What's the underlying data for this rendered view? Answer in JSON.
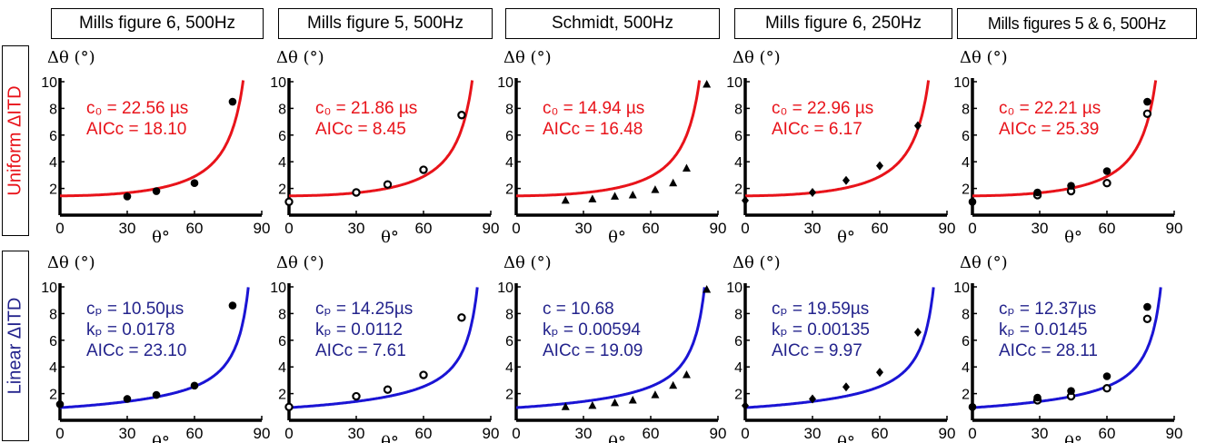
{
  "headers": [
    "Mills figure 6, 500Hz",
    "Mills figure 5, 500Hz",
    "Schmidt, 500Hz",
    "Mills figure 6, 250Hz",
    "Mills figures 5 & 6, 500Hz"
  ],
  "row_labels": [
    "Uniform ΔITD",
    "Linear ΔITD"
  ],
  "colors": {
    "uniform": "#e8131a",
    "linear": "#1a14d4",
    "uniform_text": "#e8131a",
    "linear_text": "#23238c"
  },
  "axis": {
    "ylabel": "Δθ (°)",
    "xlabel": "θ°"
  },
  "chart_data": [
    {
      "type": "scatter",
      "row": "uniform",
      "column": 0,
      "marker": "circle",
      "curve": "uniform",
      "x": [
        30,
        43,
        60,
        77
      ],
      "y": [
        1.4,
        1.8,
        2.4,
        8.5
      ],
      "annotations": [
        "c₀ = 22.56 µs",
        "AICc = 18.10"
      ],
      "xlim": [
        0,
        90
      ],
      "ylim": [
        0,
        10
      ],
      "xticks": [
        "0",
        "30",
        "60",
        "90"
      ],
      "yticks": [
        "2",
        "4",
        "6",
        "8",
        "10"
      ]
    },
    {
      "type": "scatter",
      "row": "uniform",
      "column": 1,
      "marker": "open-circle",
      "curve": "uniform",
      "x": [
        0,
        30,
        44,
        60,
        77
      ],
      "y": [
        1.0,
        1.7,
        2.3,
        3.4,
        7.5
      ],
      "annotations": [
        "c₀ = 21.86 µs",
        "AICc = 8.45"
      ],
      "xlim": [
        0,
        90
      ],
      "ylim": [
        0,
        10
      ],
      "xticks": [
        "0",
        "30",
        "60",
        "90"
      ],
      "yticks": [
        "2",
        "4",
        "6",
        "8",
        "10"
      ]
    },
    {
      "type": "scatter",
      "row": "uniform",
      "column": 2,
      "marker": "triangle",
      "curve": "uniform",
      "x": [
        22,
        34,
        44,
        52,
        62,
        70,
        76,
        85
      ],
      "y": [
        1.1,
        1.2,
        1.4,
        1.5,
        1.9,
        2.4,
        3.5,
        9.8
      ],
      "annotations": [
        "c₀ = 14.94 µs",
        "AICc = 16.48"
      ],
      "xlim": [
        0,
        90
      ],
      "ylim": [
        0,
        10
      ],
      "xticks": [
        "0",
        "30",
        "60",
        "90"
      ],
      "yticks": [
        "2",
        "4",
        "6",
        "8",
        "10"
      ]
    },
    {
      "type": "scatter",
      "row": "uniform",
      "column": 3,
      "marker": "diamond",
      "curve": "uniform",
      "x": [
        0,
        30,
        45,
        60,
        77
      ],
      "y": [
        1.1,
        1.7,
        2.6,
        3.7,
        6.7
      ],
      "annotations": [
        "c₀ = 22.96 µs",
        "AICc = 6.17"
      ],
      "xlim": [
        0,
        90
      ],
      "ylim": [
        0,
        10
      ],
      "xticks": [
        "0",
        "30",
        "60",
        "90"
      ],
      "yticks": [
        "2",
        "4",
        "6",
        "8",
        "10"
      ]
    },
    {
      "type": "scatter",
      "row": "uniform",
      "column": 4,
      "marker": "mixed",
      "curve": "uniform",
      "x": [
        0,
        29,
        29,
        44,
        44,
        60,
        60,
        78,
        78
      ],
      "y": [
        1.0,
        1.5,
        1.7,
        1.8,
        2.2,
        2.4,
        3.3,
        7.6,
        8.5
      ],
      "annotations": [
        "c₀ = 22.21 µs",
        "AICc = 25.39"
      ],
      "xlim": [
        0,
        90
      ],
      "ylim": [
        0,
        10
      ],
      "xticks": [
        "0",
        "30",
        "60",
        "90"
      ],
      "yticks": [
        "2",
        "4",
        "6",
        "8",
        "10"
      ]
    },
    {
      "type": "scatter",
      "row": "linear",
      "column": 0,
      "marker": "circle",
      "curve": "linear",
      "x": [
        0,
        30,
        43,
        60,
        77
      ],
      "y": [
        1.2,
        1.6,
        1.9,
        2.6,
        8.6
      ],
      "annotations": [
        "cₚ = 10.50µs",
        "kₚ = 0.0178",
        "AICc = 23.10"
      ],
      "xlim": [
        0,
        90
      ],
      "ylim": [
        0,
        10
      ],
      "xticks": [
        "0",
        "30",
        "60",
        "90"
      ],
      "yticks": [
        "2",
        "4",
        "6",
        "8",
        "10"
      ]
    },
    {
      "type": "scatter",
      "row": "linear",
      "column": 1,
      "marker": "open-circle",
      "curve": "linear",
      "x": [
        0,
        30,
        44,
        60,
        77
      ],
      "y": [
        1.0,
        1.8,
        2.3,
        3.4,
        7.7
      ],
      "annotations": [
        "cₚ = 14.25µs",
        "kₚ = 0.0112",
        "AICc = 7.61"
      ],
      "xlim": [
        0,
        90
      ],
      "ylim": [
        0,
        10
      ],
      "xticks": [
        "0",
        "30",
        "60",
        "90"
      ],
      "yticks": [
        "2",
        "4",
        "6",
        "8",
        "10"
      ]
    },
    {
      "type": "scatter",
      "row": "linear",
      "column": 2,
      "marker": "triangle",
      "curve": "linear",
      "x": [
        22,
        34,
        44,
        52,
        62,
        70,
        76,
        85
      ],
      "y": [
        1.0,
        1.1,
        1.3,
        1.5,
        1.9,
        2.6,
        3.4,
        9.8
      ],
      "annotations": [
        "c  = 10.68",
        "kₚ = 0.00594",
        "AICc = 19.09"
      ],
      "xlim": [
        0,
        90
      ],
      "ylim": [
        0,
        10
      ],
      "xticks": [
        "0",
        "30",
        "60",
        "90"
      ],
      "yticks": [
        "2",
        "4",
        "6",
        "8",
        "10"
      ]
    },
    {
      "type": "scatter",
      "row": "linear",
      "column": 3,
      "marker": "diamond",
      "curve": "linear",
      "x": [
        0,
        30,
        45,
        60,
        77
      ],
      "y": [
        1.1,
        1.6,
        2.5,
        3.6,
        6.6
      ],
      "annotations": [
        "cₚ = 19.59µs",
        "kₚ = 0.00135",
        "AICc = 9.97"
      ],
      "xlim": [
        0,
        90
      ],
      "ylim": [
        0,
        10
      ],
      "xticks": [
        "0",
        "30",
        "60",
        "90"
      ],
      "yticks": [
        "2",
        "4",
        "6",
        "8",
        "10"
      ]
    },
    {
      "type": "scatter",
      "row": "linear",
      "column": 4,
      "marker": "mixed",
      "curve": "linear",
      "x": [
        0,
        29,
        29,
        44,
        44,
        60,
        60,
        78,
        78
      ],
      "y": [
        1.0,
        1.5,
        1.7,
        1.8,
        2.2,
        2.4,
        3.3,
        7.6,
        8.5
      ],
      "annotations": [
        "cₚ = 12.37µs",
        "kₚ = 0.0145",
        "AICc = 28.11"
      ],
      "xlim": [
        0,
        90
      ],
      "ylim": [
        0,
        10
      ],
      "xticks": [
        "0",
        "30",
        "60",
        "90"
      ],
      "yticks": [
        "2",
        "4",
        "6",
        "8",
        "10"
      ]
    }
  ]
}
